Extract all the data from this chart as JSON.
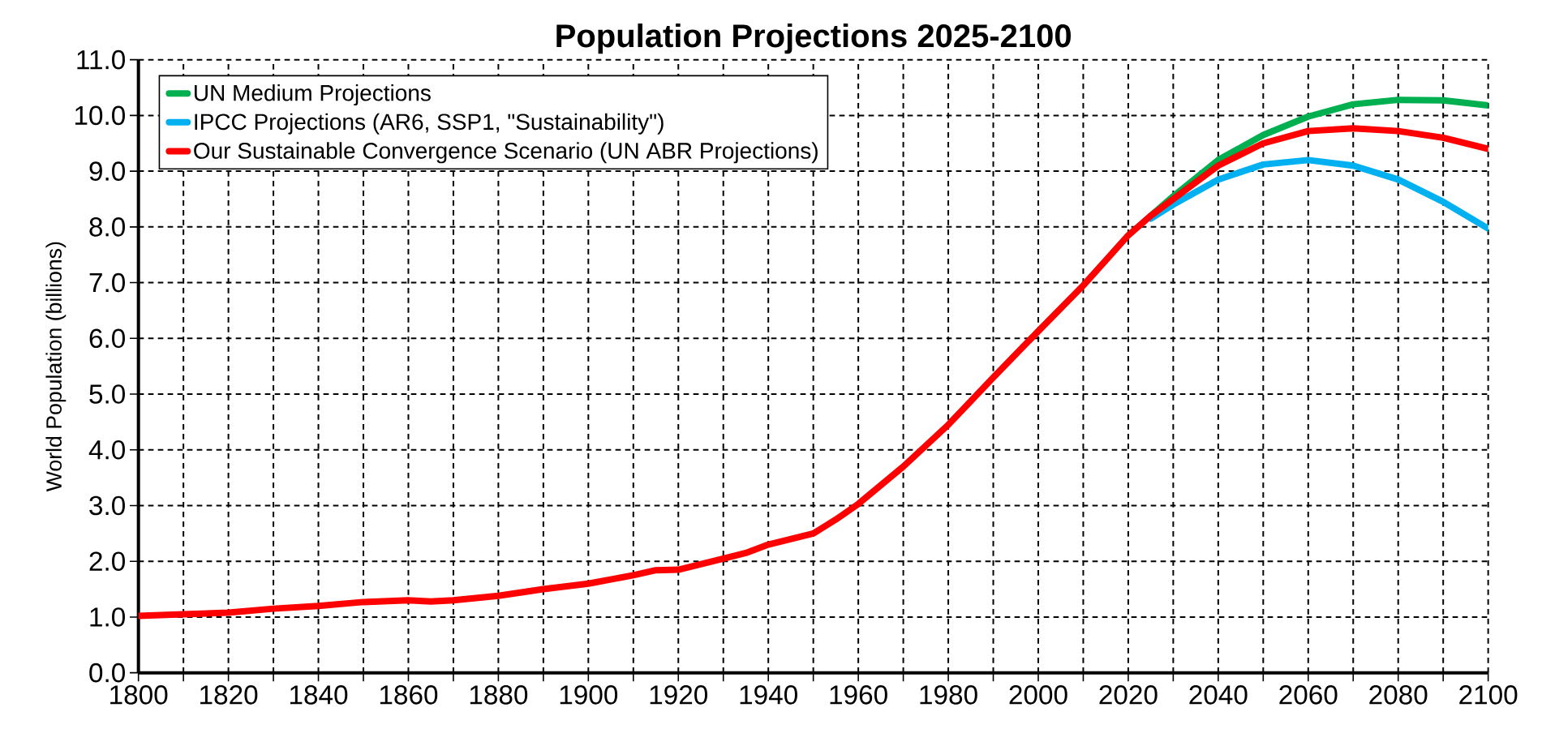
{
  "chart_data": {
    "type": "line",
    "title": "Population Projections 2025-2100",
    "ylabel": "World Population (billions)",
    "xlim": [
      1800,
      2100
    ],
    "ylim": [
      0,
      11
    ],
    "xticks": [
      1800,
      {
        "value": 1810,
        "label": null
      },
      1820,
      {
        "value": 1830,
        "label": null
      },
      1840,
      {
        "value": 1850,
        "label": null
      },
      1860,
      {
        "value": 1870,
        "label": null
      },
      1880,
      {
        "value": 1890,
        "label": null
      },
      1900,
      {
        "value": 1910,
        "label": null
      },
      1920,
      {
        "value": 1930,
        "label": null
      },
      1940,
      {
        "value": 1950,
        "label": null
      },
      1960,
      {
        "value": 1970,
        "label": null
      },
      1980,
      {
        "value": 1990,
        "label": null
      },
      2000,
      {
        "value": 2010,
        "label": null
      },
      2020,
      {
        "value": 2030,
        "label": null
      },
      2040,
      {
        "value": 2050,
        "label": null
      },
      2060,
      {
        "value": 2070,
        "label": null
      },
      2080,
      {
        "value": 2090,
        "label": null
      },
      2100
    ],
    "yticks": [
      {
        "value": 0,
        "label": "0.0"
      },
      {
        "value": 1,
        "label": "1.0"
      },
      {
        "value": 2,
        "label": "2.0"
      },
      {
        "value": 3,
        "label": "3.0"
      },
      {
        "value": 4,
        "label": "4.0"
      },
      {
        "value": 5,
        "label": "5.0"
      },
      {
        "value": 6,
        "label": "6.0"
      },
      {
        "value": 7,
        "label": "7.0"
      },
      {
        "value": 8,
        "label": "8.0"
      },
      {
        "value": 9,
        "label": "9.0"
      },
      {
        "value": 10,
        "label": "10.0"
      },
      {
        "value": 11,
        "label": "11.0"
      }
    ],
    "grid": true,
    "legend": "top left",
    "marker": "none",
    "line_style": "solid",
    "series": [
      {
        "name": "UN Medium Projections",
        "color": "#00b050",
        "x": [
          2025,
          2030,
          2040,
          2050,
          2060,
          2070,
          2080,
          2090,
          2100
        ],
        "values": [
          8.2,
          8.55,
          9.2,
          9.65,
          9.98,
          10.2,
          10.28,
          10.27,
          10.18
        ]
      },
      {
        "name": "IPCC Projections (AR6, SSP1, \"Sustainability\")",
        "color": "#00b0f0",
        "x": [
          2025,
          2030,
          2040,
          2050,
          2060,
          2070,
          2080,
          2090,
          2100
        ],
        "values": [
          8.15,
          8.4,
          8.85,
          9.12,
          9.2,
          9.1,
          8.85,
          8.45,
          7.97
        ]
      },
      {
        "name": "Our Sustainable Convergence Scenario (UN ABR Projections)",
        "color": "#ff0000",
        "x": [
          1800,
          1810,
          1820,
          1830,
          1840,
          1850,
          1860,
          1865,
          1870,
          1880,
          1890,
          1900,
          1910,
          1915,
          1920,
          1930,
          1935,
          1940,
          1950,
          1955,
          1960,
          1970,
          1980,
          1990,
          2000,
          2010,
          2020,
          2025,
          2030,
          2040,
          2050,
          2060,
          2070,
          2080,
          2090,
          2100
        ],
        "values": [
          1.02,
          1.05,
          1.08,
          1.15,
          1.2,
          1.27,
          1.3,
          1.28,
          1.3,
          1.38,
          1.5,
          1.6,
          1.75,
          1.84,
          1.85,
          2.05,
          2.15,
          2.3,
          2.5,
          2.75,
          3.03,
          3.7,
          4.45,
          5.3,
          6.13,
          6.95,
          7.85,
          8.2,
          8.5,
          9.1,
          9.5,
          9.72,
          9.77,
          9.72,
          9.6,
          9.4
        ]
      }
    ]
  }
}
